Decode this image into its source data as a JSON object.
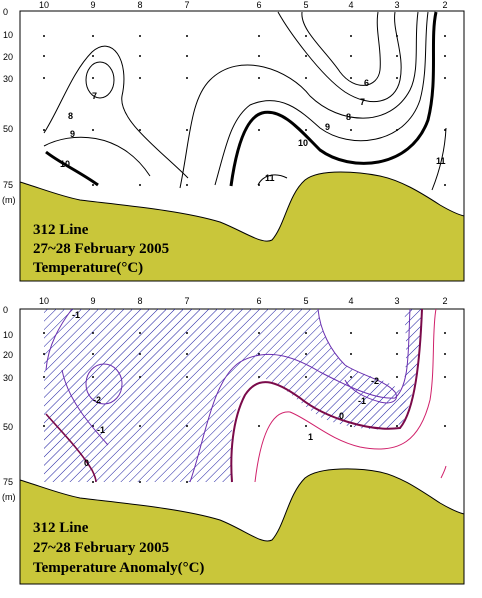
{
  "colors": {
    "seabed": "#c9c63a",
    "hatch": "#1a1aa0",
    "contour": "#000000",
    "anomaly_neg": "#6a2fb0",
    "anomaly_pos": "#d0206a",
    "anomaly_zero": "#7a0a4a"
  },
  "stations": [
    "10",
    "9",
    "8",
    "7",
    "6",
    "5",
    "4",
    "3",
    "2"
  ],
  "depths": [
    "0",
    "10",
    "20",
    "30",
    "50",
    "75"
  ],
  "depth_unit": "(m)",
  "panels": [
    {
      "title_line1": "312 Line",
      "title_line2": "27~28 February 2005",
      "title_line3": "Temperature(°C)",
      "contour_labels": [
        "7",
        "8",
        "9",
        "10",
        "6",
        "7",
        "8",
        "9",
        "10",
        "11",
        "11"
      ]
    },
    {
      "title_line1": "312 Line",
      "title_line2": "27~28 February 2005",
      "title_line3": "Temperature Anomaly(°C)",
      "contour_labels": [
        "-1",
        "-2",
        "-1",
        "0",
        "-2",
        "-1",
        "0",
        "1"
      ]
    }
  ]
}
